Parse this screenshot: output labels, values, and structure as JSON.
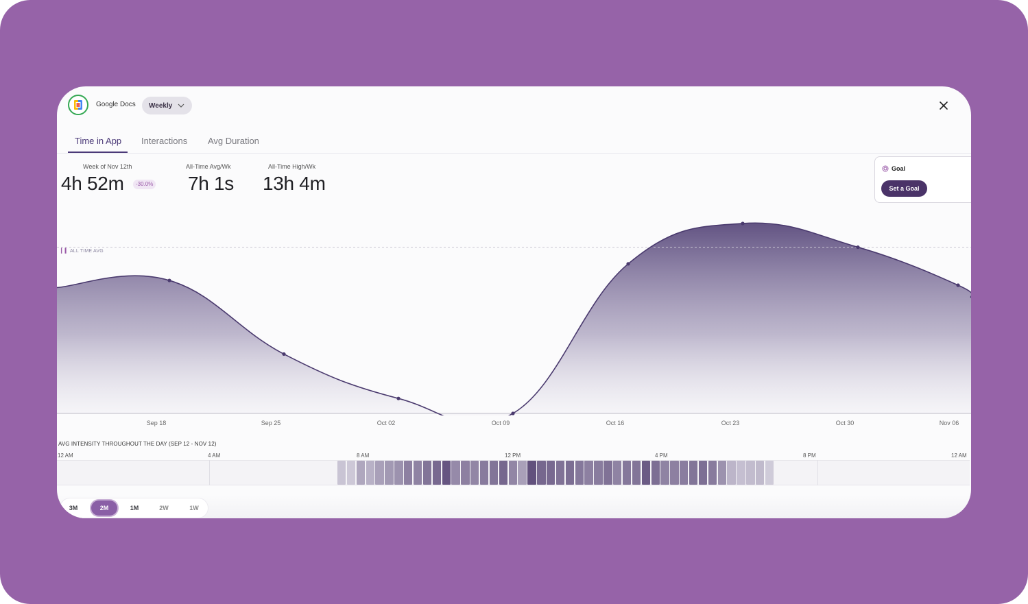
{
  "header": {
    "app_name": "Google Docs",
    "period_selector": {
      "selected": "Weekly"
    },
    "close_icon": "close-icon"
  },
  "tabs": [
    {
      "label": "Time in App",
      "active": true
    },
    {
      "label": "Interactions",
      "active": false
    },
    {
      "label": "Avg Duration",
      "active": false
    }
  ],
  "stats": [
    {
      "label": "Week of Nov 12th",
      "value": "4h 52m",
      "change": "-30.0%"
    },
    {
      "label": "All-Time Avg/Wk",
      "value": "7h 1s"
    },
    {
      "label": "All-Time High/Wk",
      "value": "13h 4m"
    }
  ],
  "goal": {
    "title": "Goal",
    "button_label": "Set a Goal",
    "icon": "target-icon"
  },
  "colors": {
    "background": "#9663a8",
    "accent": "#4b3a78",
    "line": "#4a3a6e",
    "button": "#4a3368",
    "badge_text": "#9a5aa8"
  },
  "chart_data": {
    "type": "area",
    "title": "",
    "xlabel": "",
    "ylabel": "",
    "reference_line": {
      "label": "ALL TIME AVG",
      "value": 7.0
    },
    "x_ticks": [
      "Sep 18",
      "Sep 25",
      "Oct 02",
      "Oct 09",
      "Oct 16",
      "Oct 23",
      "Oct 30",
      "Nov 06"
    ],
    "x": [
      "Sep 11",
      "Sep 18",
      "Sep 25",
      "Oct 02",
      "Oct 09",
      "Oct 16",
      "Oct 23",
      "Oct 30",
      "Nov 06",
      "Nov 12"
    ],
    "values": [
      5.3,
      5.6,
      2.5,
      0.63,
      0.0,
      6.3,
      8.0,
      7.0,
      5.4,
      4.87
    ],
    "ylim": [
      0,
      8.2
    ],
    "grid": false,
    "legend": "none"
  },
  "intensity": {
    "title": "AVG INTENSITY THROUGHOUT THE DAY (SEP 12 - NOV 12)",
    "hour_labels": [
      "12 AM",
      "4 AM",
      "8 AM",
      "12 PM",
      "4 PM",
      "8 PM",
      "12 AM"
    ],
    "start_hour": 7,
    "values": [
      0.15,
      0.12,
      0.35,
      0.28,
      0.4,
      0.45,
      0.5,
      0.62,
      0.6,
      0.7,
      0.78,
      0.92,
      0.55,
      0.62,
      0.58,
      0.66,
      0.7,
      0.8,
      0.58,
      0.4,
      0.95,
      0.8,
      0.78,
      0.72,
      0.75,
      0.68,
      0.62,
      0.65,
      0.72,
      0.6,
      0.68,
      0.7,
      0.88,
      0.74,
      0.6,
      0.62,
      0.64,
      0.7,
      0.74,
      0.66,
      0.5,
      0.25,
      0.18,
      0.2,
      0.22,
      0.1
    ]
  },
  "ranges": [
    {
      "label": "3M",
      "selected": false
    },
    {
      "label": "2M",
      "selected": true
    },
    {
      "label": "1M",
      "selected": false
    },
    {
      "label": "2W",
      "selected": false
    },
    {
      "label": "1W",
      "selected": false
    }
  ]
}
